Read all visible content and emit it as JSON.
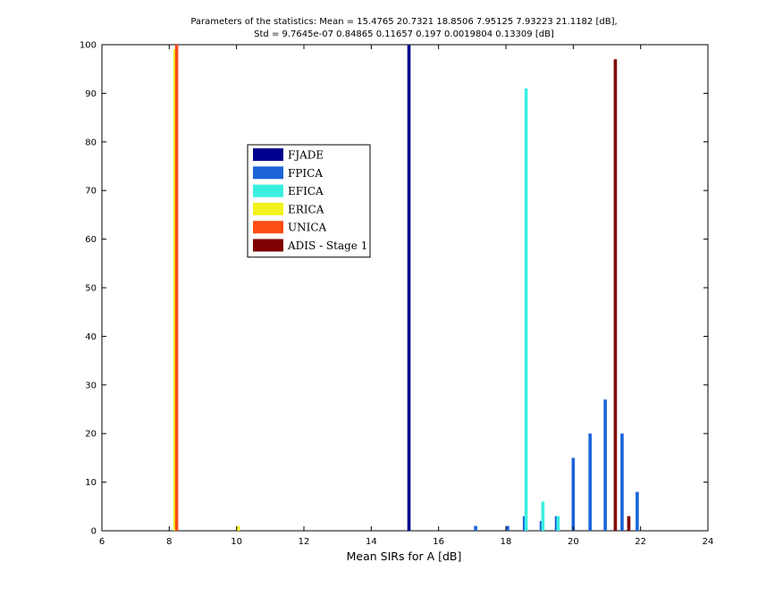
{
  "chart_data": {
    "type": "bar",
    "title_lines": [
      "Parameters of the statistics:   Mean = 15.4765      20.7321      18.8506      7.95125      7.93223      21.1182 [dB],",
      "Std = 9.7645e-07      0.84865      0.11657       0.197   0.0019804      0.13309 [dB]"
    ],
    "xlabel": "Mean SIRs for A [dB]",
    "ylabel": "",
    "xlim": [
      6,
      24
    ],
    "ylim": [
      0,
      100
    ],
    "xticks": [
      6,
      8,
      10,
      12,
      14,
      16,
      18,
      20,
      22,
      24
    ],
    "yticks": [
      0,
      10,
      20,
      30,
      40,
      50,
      60,
      70,
      80,
      90,
      100
    ],
    "grid": false,
    "legend_position": "upper-left-center",
    "series": [
      {
        "name": "FJADE",
        "color": "#00008f",
        "points": [
          [
            15.12,
            100
          ]
        ]
      },
      {
        "name": "FPICA",
        "color": "#1b64d8",
        "points": [
          [
            17.1,
            1
          ],
          [
            18.05,
            1
          ],
          [
            18.55,
            3
          ],
          [
            19.05,
            2
          ],
          [
            19.5,
            3
          ],
          [
            20.0,
            15
          ],
          [
            20.5,
            20
          ],
          [
            20.95,
            27
          ],
          [
            21.45,
            20
          ],
          [
            21.9,
            8
          ]
        ]
      },
      {
        "name": "EFICA",
        "color": "#39f0e0",
        "points": [
          [
            18.6,
            91
          ],
          [
            19.1,
            6
          ],
          [
            19.55,
            3
          ]
        ]
      },
      {
        "name": "ERICA",
        "color": "#f2f21d",
        "points": [
          [
            8.17,
            99
          ],
          [
            10.05,
            1
          ]
        ]
      },
      {
        "name": "UNICA",
        "color": "#ff4d16",
        "points": [
          [
            8.22,
            100
          ]
        ]
      },
      {
        "name": "ADIS - Stage 1",
        "color": "#7f0000",
        "points": [
          [
            21.25,
            97
          ],
          [
            21.65,
            3
          ]
        ]
      }
    ]
  }
}
